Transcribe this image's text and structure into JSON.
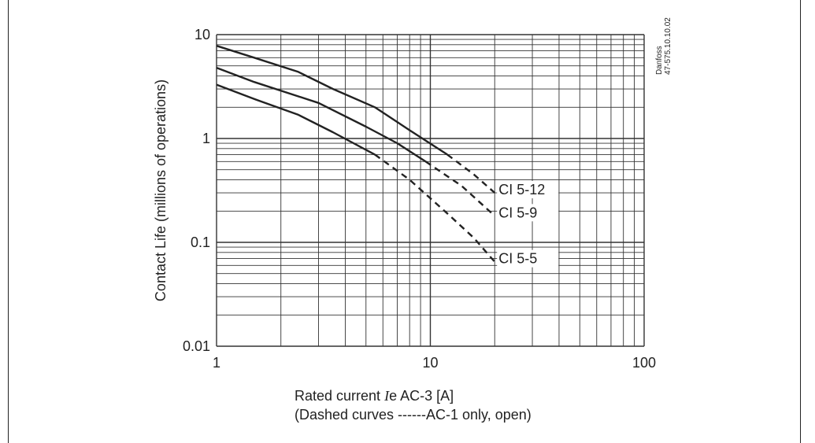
{
  "chart_data": {
    "type": "line",
    "xscale": "log",
    "yscale": "log",
    "xlim": [
      1,
      100
    ],
    "ylim": [
      0.01,
      10
    ],
    "grid": true,
    "ylabel": "Contact Life (millions of operations)",
    "xlabel": {
      "prefix": "Rated current ",
      "symbol": "I",
      "suffix": "e AC-3 [A]"
    },
    "xlabel_note": "(Dashed curves ------AC-1 only, open)",
    "xticks": [
      {
        "value": 1,
        "label": "1"
      },
      {
        "value": 10,
        "label": "10"
      },
      {
        "value": 100,
        "label": "100"
      }
    ],
    "yticks": [
      {
        "value": 10,
        "label": "10"
      },
      {
        "value": 1,
        "label": "1"
      },
      {
        "value": 0.1,
        "label": "0.1"
      },
      {
        "value": 0.01,
        "label": "0.01"
      }
    ],
    "annotation": [
      "Danfoss",
      "47-575.10.10.02"
    ],
    "series": [
      {
        "name": "CI 5-12",
        "solid": [
          [
            1,
            7.8
          ],
          [
            1.5,
            6.0
          ],
          [
            2.4,
            4.4
          ],
          [
            3.5,
            3.0
          ],
          [
            5.5,
            2.0
          ],
          [
            8,
            1.2
          ],
          [
            12,
            0.7
          ]
        ],
        "dashed": [
          [
            12,
            0.7
          ],
          [
            16,
            0.45
          ],
          [
            20,
            0.3
          ]
        ]
      },
      {
        "name": "CI 5-9",
        "solid": [
          [
            1,
            4.8
          ],
          [
            1.5,
            3.5
          ],
          [
            3.0,
            2.2
          ],
          [
            5,
            1.3
          ],
          [
            7,
            0.9
          ],
          [
            9.5,
            0.6
          ]
        ],
        "dashed": [
          [
            9.5,
            0.6
          ],
          [
            14,
            0.35
          ],
          [
            20,
            0.18
          ]
        ]
      },
      {
        "name": "CI 5-5",
        "solid": [
          [
            1,
            3.3
          ],
          [
            1.5,
            2.4
          ],
          [
            2.4,
            1.7
          ],
          [
            3.5,
            1.15
          ],
          [
            5.5,
            0.7
          ]
        ],
        "dashed": [
          [
            5.5,
            0.7
          ],
          [
            8,
            0.4
          ],
          [
            12,
            0.19
          ],
          [
            16,
            0.11
          ],
          [
            20,
            0.065
          ]
        ]
      }
    ]
  }
}
